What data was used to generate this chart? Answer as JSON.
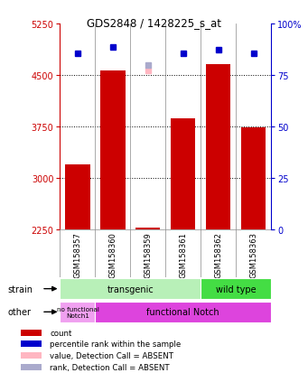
{
  "title": "GDS2848 / 1428225_s_at",
  "samples": [
    "GSM158357",
    "GSM158360",
    "GSM158359",
    "GSM158361",
    "GSM158362",
    "GSM158363"
  ],
  "bar_values": [
    3200,
    4560,
    2270,
    3870,
    4650,
    3730
  ],
  "bar_color": "#cc0000",
  "blue_dot_values": [
    4820,
    4900,
    null,
    4820,
    4870,
    4820
  ],
  "pink_dot_values": [
    null,
    null,
    4570,
    null,
    null,
    null
  ],
  "light_blue_dot_values": [
    null,
    null,
    4640,
    null,
    null,
    null
  ],
  "blue_dot_color": "#0000cc",
  "pink_dot_color": "#ffb6c1",
  "light_blue_dot_color": "#aaaacc",
  "ylim_left": [
    2250,
    5250
  ],
  "ylim_right": [
    0,
    100
  ],
  "yticks_left": [
    2250,
    3000,
    3750,
    4500,
    5250
  ],
  "yticks_right": [
    0,
    25,
    50,
    75,
    100
  ],
  "right_tick_labels": [
    "0",
    "25",
    "50",
    "75",
    "100%"
  ],
  "grid_values": [
    3000,
    3750,
    4500
  ],
  "transgenic_color": "#b8f0b8",
  "wildtype_color": "#44dd44",
  "nofunc_color": "#f0a0f0",
  "func_color": "#dd44dd",
  "background_color": "#ffffff",
  "left_tick_color": "#cc0000",
  "right_tick_color": "#0000cc",
  "sample_bg_color": "#d0d0d0",
  "legend_items": [
    {
      "label": "count",
      "color": "#cc0000"
    },
    {
      "label": "percentile rank within the sample",
      "color": "#0000cc"
    },
    {
      "label": "value, Detection Call = ABSENT",
      "color": "#ffb6c1"
    },
    {
      "label": "rank, Detection Call = ABSENT",
      "color": "#aaaacc"
    }
  ]
}
